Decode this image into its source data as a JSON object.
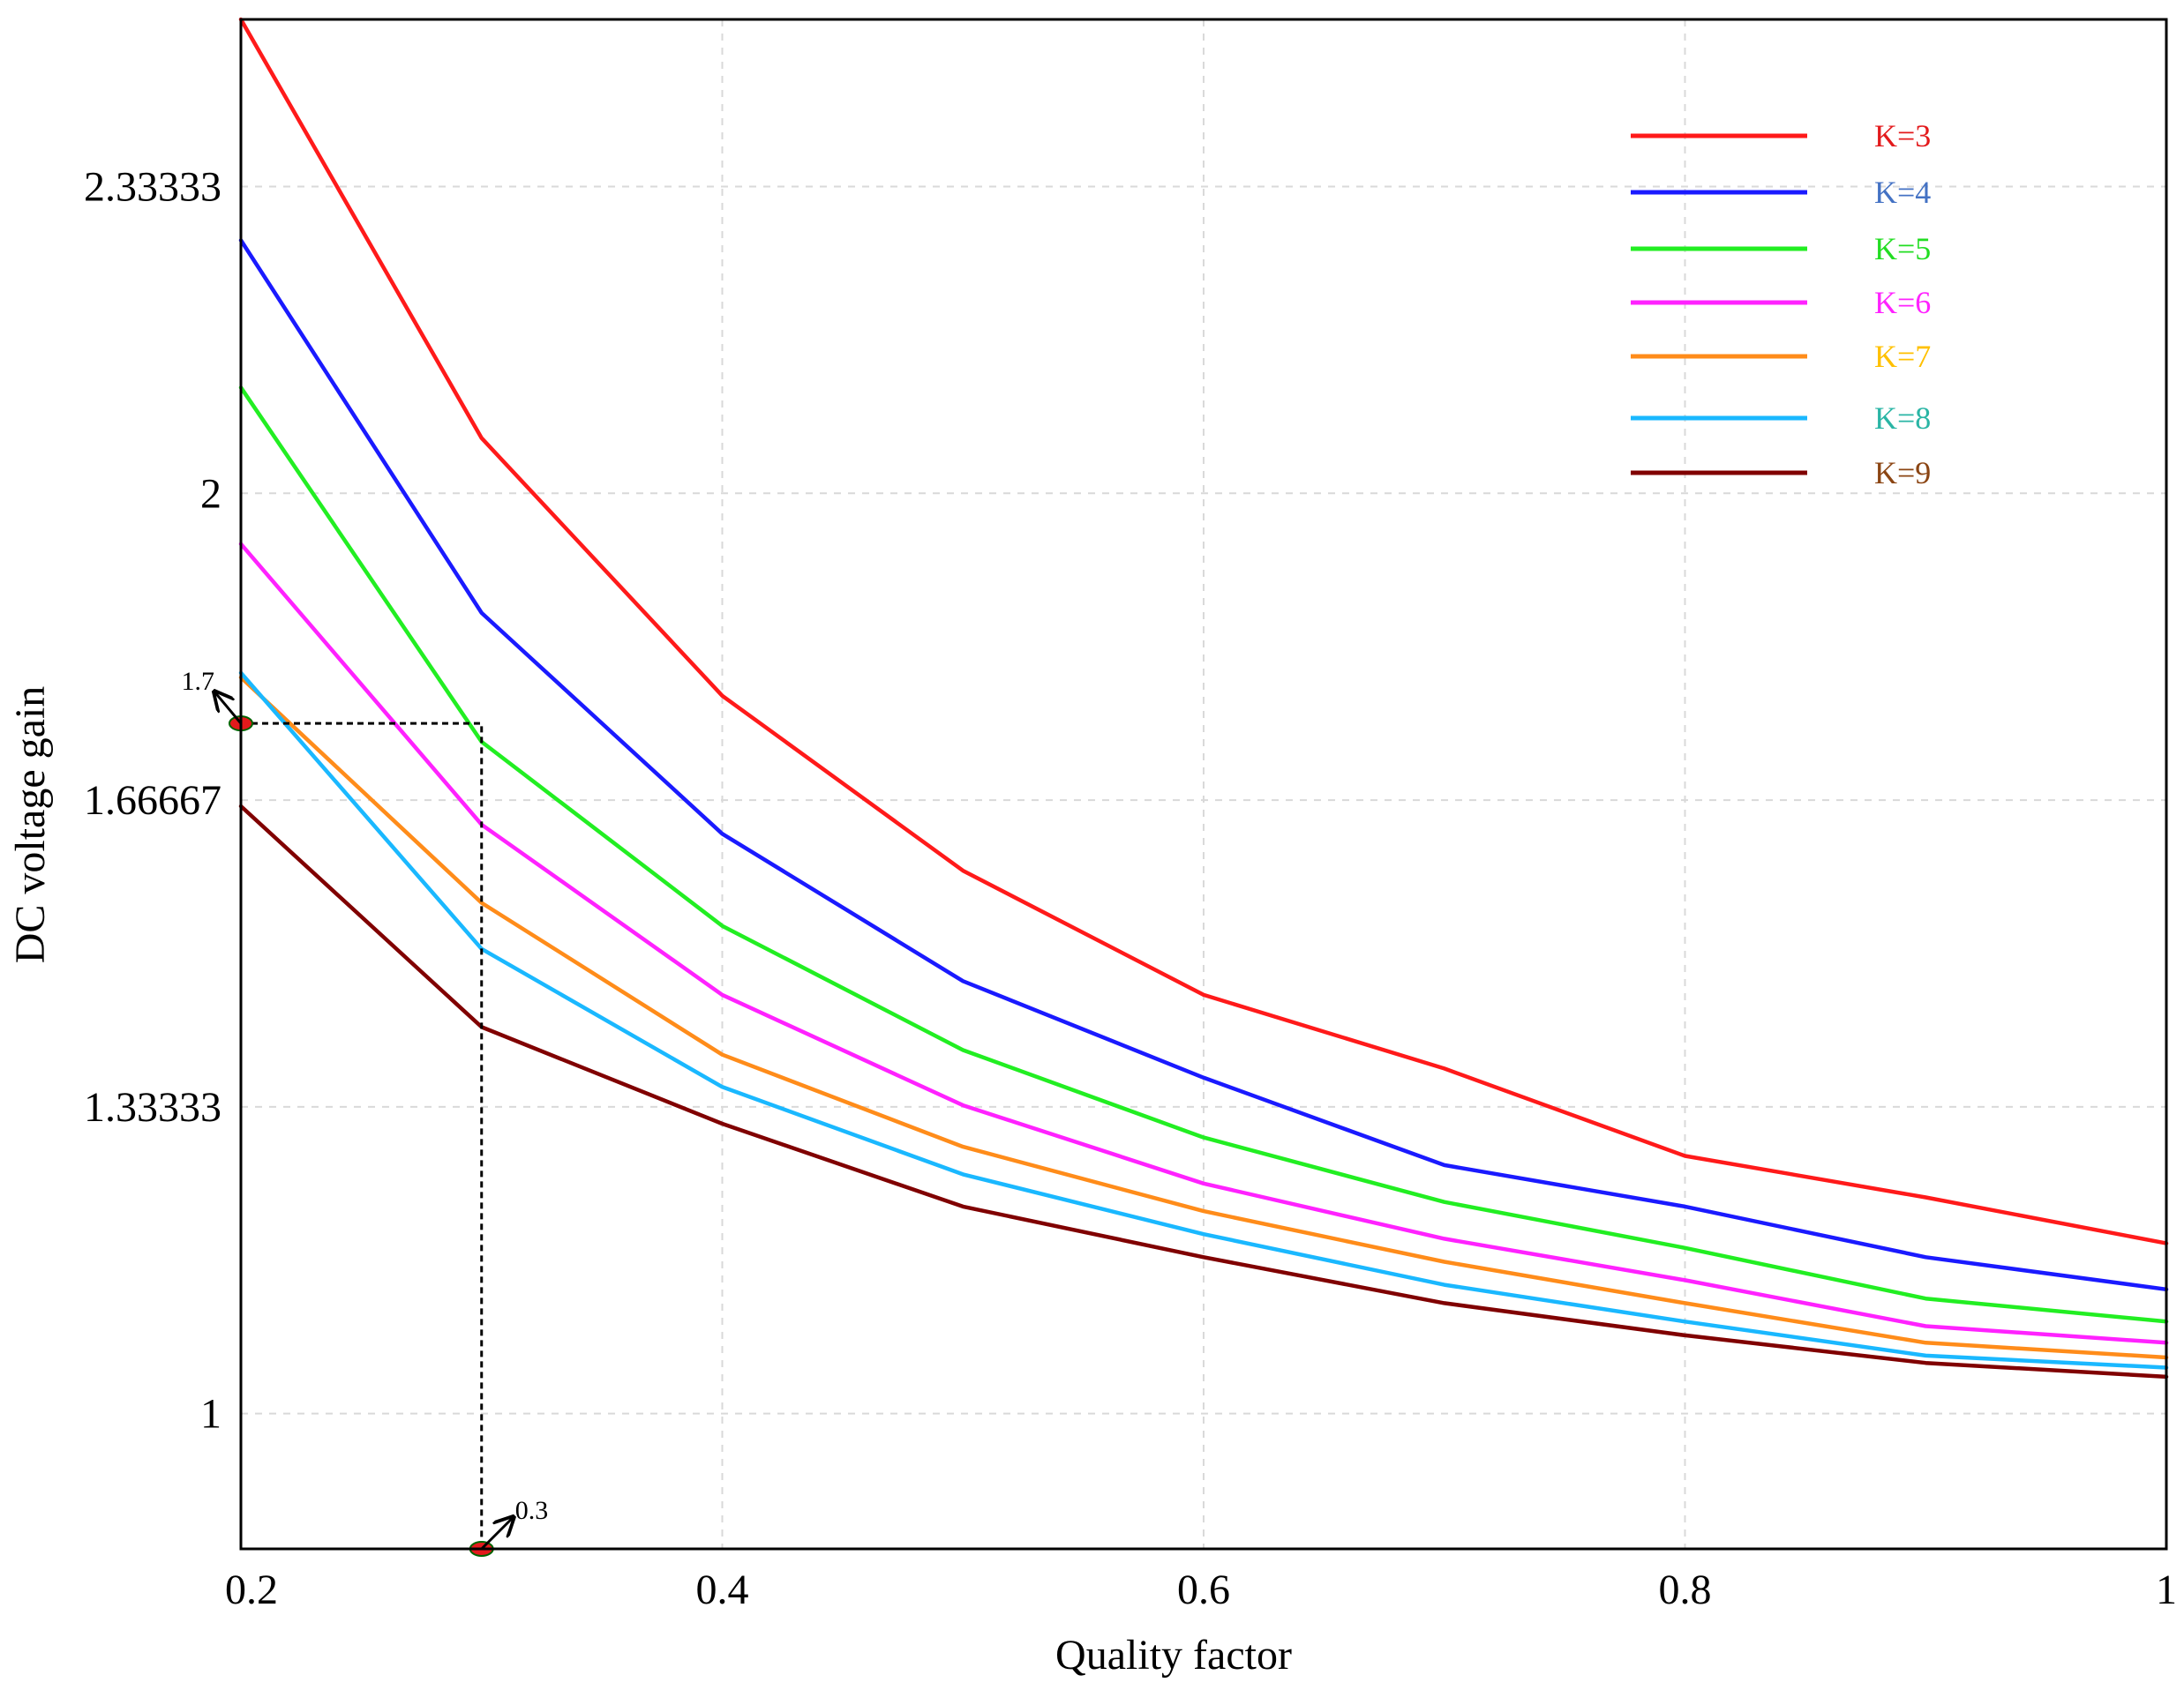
{
  "chart_data": {
    "type": "line",
    "title": "",
    "xlabel": "Quality factor",
    "ylabel": "DC voltage gain",
    "xlim": [
      0.2,
      1.0
    ],
    "ylim": [
      0.853,
      2.515
    ],
    "grid": true,
    "x": [
      0.2,
      0.3,
      0.4,
      0.5,
      0.6,
      0.7,
      0.8,
      0.9,
      1.0
    ],
    "x_ticks": [
      {
        "value": 0.2,
        "label": "0.2"
      },
      {
        "value": 0.4,
        "label": "0.4"
      },
      {
        "value": 0.6,
        "label": "0.6"
      },
      {
        "value": 0.8,
        "label": "0.8"
      },
      {
        "value": 1.0,
        "label": "1"
      }
    ],
    "y_ticks": [
      {
        "value": 1.0,
        "label": "1"
      },
      {
        "value": 1.33333,
        "label": "1.33333"
      },
      {
        "value": 1.66667,
        "label": "1.66667"
      },
      {
        "value": 2.0,
        "label": "2"
      },
      {
        "value": 2.33333,
        "label": "2.33333"
      }
    ],
    "legend_position": "top-right",
    "series": [
      {
        "name": "K=3",
        "color": "#ff1a1a",
        "label_color": "#e31a1c",
        "values": [
          2.515,
          2.06,
          1.78,
          1.59,
          1.455,
          1.375,
          1.28,
          1.235,
          1.185
        ]
      },
      {
        "name": "K=4",
        "color": "#1a1aff",
        "label_color": "#4472c4",
        "values": [
          2.275,
          1.87,
          1.63,
          1.47,
          1.365,
          1.27,
          1.225,
          1.17,
          1.135
        ]
      },
      {
        "name": "K=5",
        "color": "#22ee22",
        "label_color": "#22dd22",
        "values": [
          2.115,
          1.73,
          1.53,
          1.395,
          1.3,
          1.23,
          1.18,
          1.125,
          1.1
        ]
      },
      {
        "name": "K=6",
        "color": "#ff22ff",
        "label_color": "#ff22ff",
        "values": [
          1.945,
          1.64,
          1.455,
          1.335,
          1.25,
          1.19,
          1.145,
          1.095,
          1.077
        ]
      },
      {
        "name": "K=7",
        "color": "#ff8c1a",
        "label_color": "#ffc000",
        "values": [
          1.8,
          1.555,
          1.39,
          1.29,
          1.22,
          1.165,
          1.12,
          1.077,
          1.061
        ]
      },
      {
        "name": "K=8",
        "color": "#1ab8ff",
        "label_color": "#2ab5a5",
        "values": [
          1.805,
          1.505,
          1.355,
          1.26,
          1.195,
          1.14,
          1.1,
          1.063,
          1.05
        ]
      },
      {
        "name": "K=9",
        "color": "#800000",
        "label_color": "#8b4513",
        "values": [
          1.66,
          1.42,
          1.315,
          1.225,
          1.17,
          1.12,
          1.085,
          1.055,
          1.04
        ]
      }
    ],
    "annotations": [
      {
        "label": "1.7",
        "x": 0.2,
        "y": 1.75,
        "axis": "y"
      },
      {
        "label": "0.3",
        "x": 0.3,
        "y": 0.853,
        "axis": "x"
      }
    ],
    "guide_point": {
      "x": 0.3,
      "y": 1.75
    }
  }
}
